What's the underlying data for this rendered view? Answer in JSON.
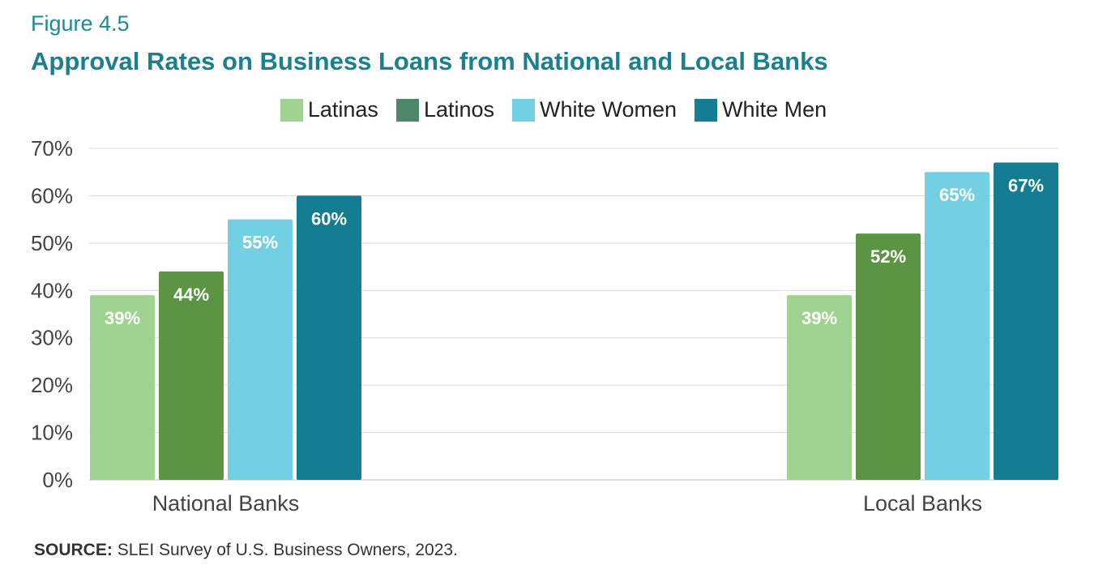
{
  "header": {
    "figure_label": "Figure 4.5",
    "title": "Approval Rates on Business Loans from National and Local Banks"
  },
  "source": {
    "label": "SOURCE:",
    "text": "SLEI Survey of U.S. Business Owners, 2023."
  },
  "chart_data": {
    "type": "bar",
    "title": "Approval Rates on Business Loans from National and Local Banks",
    "categories": [
      "National Banks",
      "Local Banks"
    ],
    "series": [
      {
        "name": "Latinas",
        "values": [
          39,
          39
        ],
        "labels": [
          "39%",
          "39%"
        ],
        "color": "#a0d391",
        "label_color": "#ffffff"
      },
      {
        "name": "Latinos",
        "values": [
          44,
          52
        ],
        "labels": [
          "44%",
          "52%"
        ],
        "color": "#5b9442",
        "legend_color": "#4e8669",
        "label_color": "#ffffff"
      },
      {
        "name": "White Women",
        "values": [
          55,
          65
        ],
        "labels": [
          "55%",
          "65%"
        ],
        "color": "#72d0e2",
        "label_color": "#ffffff"
      },
      {
        "name": "White Men",
        "values": [
          60,
          67
        ],
        "labels": [
          "60%",
          "67%"
        ],
        "color": "#147d91",
        "label_color": "#ffffff"
      }
    ],
    "y_ticks": [
      "0%",
      "10%",
      "20%",
      "30%",
      "40%",
      "50%",
      "60%",
      "70%"
    ],
    "ylim": [
      0,
      70
    ],
    "grid": true,
    "legend_position": "top-center"
  }
}
